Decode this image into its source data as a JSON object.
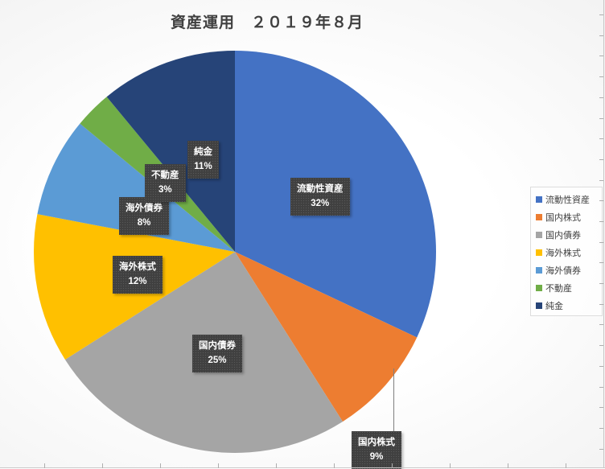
{
  "title": "資産運用　２０１９年８月",
  "chart_data": {
    "type": "pie",
    "title": "資産運用　２０１９年８月",
    "categories": [
      "流動性資産",
      "国内株式",
      "国内債券",
      "海外株式",
      "海外債券",
      "不動産",
      "純金"
    ],
    "values": [
      32,
      9,
      25,
      12,
      8,
      3,
      11
    ],
    "percent_labels": [
      "32%",
      "9%",
      "25%",
      "12%",
      "8%",
      "3%",
      "11%"
    ],
    "colors": [
      "#4472C4",
      "#ED7D31",
      "#A5A5A5",
      "#FFC000",
      "#5B9BD5",
      "#70AD47",
      "#264478"
    ],
    "unit": "%",
    "start_angle_deg": 0,
    "direction": "clockwise",
    "legend_position": "right",
    "label_box_color": "#404040",
    "label_text_color": "#FFFFFF",
    "title_color": "#404040",
    "legend_text_color": "#404040"
  }
}
